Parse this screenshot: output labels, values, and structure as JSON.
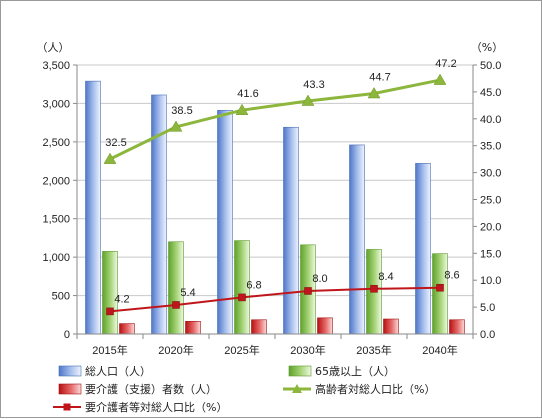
{
  "chart_data": {
    "type": "bar",
    "categories": [
      "2015年",
      "2020年",
      "2025年",
      "2030年",
      "2035年",
      "2040年"
    ],
    "y_left": {
      "unit_label": "（人）",
      "ylim": [
        0,
        3500
      ],
      "ticks": [
        "0",
        "500",
        "1,000",
        "1,500",
        "2,000",
        "2,500",
        "3,000",
        "3,500"
      ]
    },
    "y_right": {
      "unit_label": "（%）",
      "ylim": [
        0,
        50
      ],
      "ticks": [
        "0.0",
        "5.0",
        "10.0",
        "15.0",
        "20.0",
        "25.0",
        "30.0",
        "35.0",
        "40.0",
        "45.0",
        "50.0"
      ]
    },
    "grid": true,
    "legend_position": "bottom",
    "series": [
      {
        "name": "総人口（人）",
        "kind": "bar",
        "axis": "left",
        "color": "#6f93d8",
        "values": [
          3290,
          3110,
          2910,
          2690,
          2460,
          2220
        ]
      },
      {
        "name": "65歳以上（人）",
        "kind": "bar",
        "axis": "left",
        "color": "#8cc24e",
        "values": [
          1075,
          1200,
          1215,
          1160,
          1100,
          1045
        ]
      },
      {
        "name": "要介護（支援）者数（人）",
        "kind": "bar",
        "axis": "left",
        "color": "#d0201f",
        "values": [
          135,
          165,
          185,
          210,
          195,
          185
        ]
      },
      {
        "name": "高齢者対総人口比（%）",
        "kind": "line",
        "axis": "right",
        "color": "#8db63c",
        "marker": "triangle",
        "values": [
          32.5,
          38.5,
          41.6,
          43.3,
          44.7,
          47.2
        ],
        "labels": [
          "32.5",
          "38.5",
          "41.6",
          "43.3",
          "44.7",
          "47.2"
        ]
      },
      {
        "name": "要介護者等対総人口比（%）",
        "kind": "line",
        "axis": "right",
        "color": "#c0161b",
        "marker": "square",
        "values": [
          4.2,
          5.4,
          6.8,
          8.0,
          8.4,
          8.6
        ],
        "labels": [
          "4.2",
          "5.4",
          "6.8",
          "8.0",
          "8.4",
          "8.6"
        ]
      }
    ]
  }
}
